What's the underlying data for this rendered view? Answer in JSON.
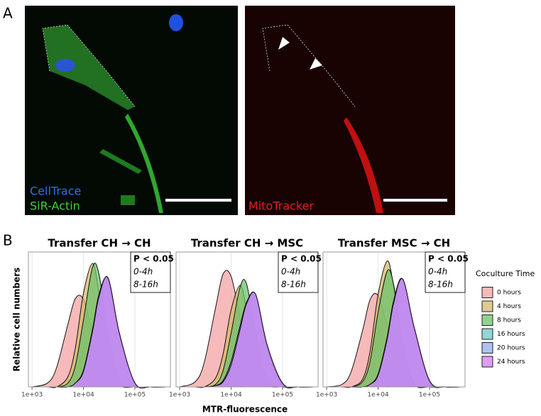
{
  "figure": {
    "panel_a_label": "A",
    "panel_b_label": "B",
    "image_left_labels": [
      "CellTrace",
      "SiR-Actin"
    ],
    "image_right_label": "MitoTracker",
    "y_label": "Relative cell numbers",
    "x_label": "MTR-fluorescence",
    "legend_title": "Coculture Time"
  },
  "chart_data": [
    {
      "type": "density",
      "title": "Transfer CH → CH",
      "log_x": true,
      "grid": true,
      "annotation": [
        "P < 0.05",
        "0-4h",
        "8-16h"
      ],
      "x": [
        1000,
        2000,
        3000,
        5000,
        7000,
        10000,
        15000,
        20000,
        30000,
        50000,
        100000,
        200000,
        400000
      ],
      "xlim": [
        850,
        490000
      ],
      "ylim": [
        0,
        1.05
      ],
      "xticks": [
        {
          "value": 1000,
          "label": "1e+03"
        },
        {
          "value": 10000,
          "label": "1e+04"
        },
        {
          "value": 100000,
          "label": "1e+05"
        }
      ],
      "series": [
        {
          "name": "0 hours",
          "color": "#f4a3a3",
          "values": [
            0,
            0.03,
            0.15,
            0.49,
            0.69,
            0.68,
            0.42,
            0.23,
            0.06,
            0.01,
            0,
            0,
            0
          ]
        },
        {
          "name": "4 hours",
          "color": "#d4b86a",
          "values": [
            0,
            0,
            0,
            0.08,
            0.31,
            0.73,
            0.96,
            0.73,
            0.25,
            0.02,
            0,
            0,
            0
          ]
        },
        {
          "name": "8 hours",
          "color": "#6cc36c",
          "values": [
            0,
            0,
            0,
            0.03,
            0.17,
            0.52,
            0.93,
            0.88,
            0.41,
            0.05,
            0,
            0,
            0
          ]
        },
        {
          "name": "16 hours",
          "color": "#6cc9c9",
          "values": [
            0,
            0,
            0,
            0,
            0.03,
            0.13,
            0.44,
            0.71,
            0.83,
            0.4,
            0.03,
            0,
            0
          ]
        },
        {
          "name": "20 hours",
          "color": "#8fb0f0",
          "values": [
            0,
            0,
            0,
            0,
            0.03,
            0.13,
            0.45,
            0.72,
            0.84,
            0.41,
            0.03,
            0,
            0
          ]
        },
        {
          "name": "24 hours",
          "color": "#d27ef0",
          "values": [
            0,
            0,
            0,
            0,
            0.03,
            0.12,
            0.43,
            0.7,
            0.85,
            0.42,
            0.03,
            0,
            0
          ]
        }
      ]
    },
    {
      "type": "density",
      "title": "Transfer CH → MSC",
      "log_x": true,
      "grid": true,
      "annotation": [
        "P < 0.05",
        "0-4h",
        "8-16h"
      ],
      "x": [
        1000,
        2000,
        3000,
        5000,
        7000,
        10000,
        15000,
        20000,
        30000,
        50000,
        100000,
        200000,
        400000
      ],
      "xlim": [
        850,
        490000
      ],
      "ylim": [
        0,
        1.05
      ],
      "xticks": [
        {
          "value": 1000,
          "label": "1e+03"
        },
        {
          "value": 10000,
          "label": "1e+04"
        },
        {
          "value": 100000,
          "label": "1e+05"
        }
      ],
      "series": [
        {
          "color": "#f4a3a3",
          "values": [
            0,
            0.04,
            0.19,
            0.62,
            0.88,
            0.86,
            0.53,
            0.29,
            0.08,
            0.01,
            0,
            0,
            0
          ]
        },
        {
          "color": "#d4b86a",
          "values": [
            0,
            0,
            0,
            0.07,
            0.26,
            0.6,
            0.79,
            0.6,
            0.21,
            0.02,
            0,
            0,
            0
          ]
        },
        {
          "color": "#6cc36c",
          "values": [
            0,
            0,
            0,
            0.02,
            0.13,
            0.42,
            0.78,
            0.8,
            0.42,
            0.06,
            0,
            0,
            0
          ]
        },
        {
          "color": "#6cc9c9",
          "values": [
            0,
            0,
            0,
            0.01,
            0.05,
            0.18,
            0.46,
            0.64,
            0.7,
            0.3,
            0.02,
            0,
            0
          ]
        },
        {
          "color": "#8fb0f0",
          "values": [
            0,
            0,
            0,
            0.01,
            0.05,
            0.2,
            0.48,
            0.66,
            0.72,
            0.32,
            0.02,
            0,
            0
          ]
        },
        {
          "color": "#d27ef0",
          "values": [
            0,
            0,
            0,
            0.01,
            0.04,
            0.17,
            0.45,
            0.65,
            0.72,
            0.33,
            0.03,
            0,
            0
          ]
        }
      ]
    },
    {
      "type": "density",
      "title": "Transfer MSC → CH",
      "log_x": true,
      "grid": true,
      "annotation": [
        "P < 0.05",
        "0-4h",
        "8-16h"
      ],
      "x": [
        1000,
        2000,
        3000,
        5000,
        7000,
        10000,
        15000,
        20000,
        30000,
        50000,
        100000,
        200000,
        400000
      ],
      "xlim": [
        850,
        490000
      ],
      "ylim": [
        0,
        1.05
      ],
      "xticks": [
        {
          "value": 1000,
          "label": "1e+03"
        },
        {
          "value": 10000,
          "label": "1e+04"
        },
        {
          "value": 100000,
          "label": "1e+05"
        }
      ],
      "series": [
        {
          "color": "#f4a3a3",
          "values": [
            0,
            0.02,
            0.12,
            0.44,
            0.68,
            0.71,
            0.47,
            0.27,
            0.07,
            0.01,
            0,
            0,
            0
          ]
        },
        {
          "color": "#d4b86a",
          "values": [
            0,
            0,
            0,
            0.06,
            0.28,
            0.72,
            0.98,
            0.78,
            0.28,
            0.02,
            0,
            0,
            0
          ]
        },
        {
          "color": "#6cc36c",
          "values": [
            0,
            0,
            0,
            0.04,
            0.2,
            0.58,
            0.9,
            0.8,
            0.34,
            0.03,
            0,
            0,
            0
          ]
        },
        {
          "color": "#6cc9c9",
          "values": [
            0,
            0,
            0,
            0,
            0.02,
            0.1,
            0.38,
            0.66,
            0.83,
            0.45,
            0.04,
            0,
            0
          ]
        },
        {
          "color": "#8fb0f0",
          "values": [
            0,
            0,
            0,
            0,
            0.02,
            0.1,
            0.39,
            0.67,
            0.84,
            0.46,
            0.04,
            0,
            0
          ]
        },
        {
          "color": "#d27ef0",
          "values": [
            0,
            0,
            0,
            0,
            0.02,
            0.09,
            0.37,
            0.65,
            0.84,
            0.47,
            0.05,
            0,
            0
          ]
        }
      ]
    }
  ]
}
